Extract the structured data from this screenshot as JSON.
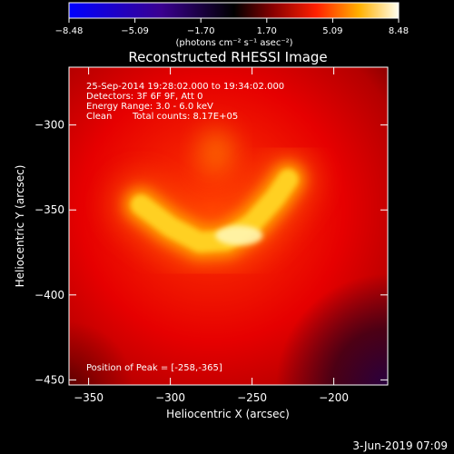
{
  "chart_data": {
    "type": "heatmap",
    "title": "Reconstructed RHESSI Image",
    "xlabel": "Heliocentric X (arcsec)",
    "ylabel": "Heliocentric Y (arcsec)",
    "xlim": [
      -362,
      -167
    ],
    "ylim": [
      -453,
      -266
    ],
    "x_ticks": [
      -350,
      -300,
      -250,
      -200
    ],
    "y_ticks": [
      -450,
      -400,
      -350,
      -300
    ],
    "colorbar": {
      "min": -8.48,
      "max": 8.48,
      "ticks": [
        "-8.48",
        "-5.09",
        "-1.70",
        "1.70",
        "5.09",
        "8.48"
      ],
      "label": "(photons cm⁻² s⁻¹ asec⁻²)",
      "colormap": [
        "#0000ff",
        "#4000a0",
        "#000000",
        "#a00000",
        "#ff4000",
        "#ffc000",
        "#ffffe0"
      ]
    },
    "annotations": {
      "time_range": "25-Sep-2014 19:28:02.000 to 19:34:02.000",
      "detectors": "Detectors: 3F 6F 9F, Att 0",
      "energy": "Energy Range: 3.0 - 6.0 keV",
      "method": "Clean",
      "counts": "Total counts: 8.17E+05",
      "peak": "Position of Peak = [-258,-365]"
    },
    "source": {
      "shape": "arc",
      "arc_points": [
        [
          -318,
          -347
        ],
        [
          -300,
          -360
        ],
        [
          -282,
          -369
        ],
        [
          -266,
          -368
        ],
        [
          -250,
          -358
        ],
        [
          -236,
          -343
        ],
        [
          -228,
          -332
        ]
      ],
      "secondary_peak": [
        -272,
        -316
      ],
      "peak_position": [
        -258,
        -365
      ]
    }
  },
  "footer": {
    "date": "3-Jun-2019 07:09"
  }
}
